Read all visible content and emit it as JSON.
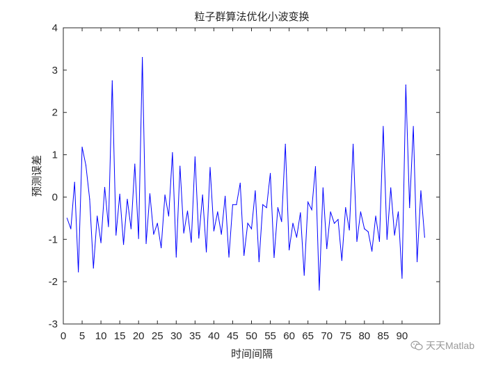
{
  "chart_data": {
    "type": "line",
    "title": "粒子群算法优化小波变换",
    "xlabel": "时间间隔",
    "ylabel": "预测误差",
    "xlim": [
      0,
      100
    ],
    "ylim": [
      -3,
      4
    ],
    "xticks": [
      0,
      5,
      10,
      15,
      20,
      25,
      30,
      35,
      40,
      45,
      50,
      55,
      60,
      65,
      70,
      75,
      80,
      85,
      90
    ],
    "yticks": [
      -3,
      -2,
      -1,
      0,
      1,
      2,
      3,
      4
    ],
    "grid": false,
    "series": [
      {
        "color": "#0000ff",
        "x": [
          1,
          2,
          3,
          4,
          5,
          6,
          7,
          8,
          9,
          10,
          11,
          12,
          13,
          14,
          15,
          16,
          17,
          18,
          19,
          20,
          21,
          22,
          23,
          24,
          25,
          26,
          27,
          28,
          29,
          30,
          31,
          32,
          33,
          34,
          35,
          36,
          37,
          38,
          39,
          40,
          41,
          42,
          43,
          44,
          45,
          46,
          47,
          48,
          49,
          50,
          51,
          52,
          53,
          54,
          55,
          56,
          57,
          58,
          59,
          60,
          61,
          62,
          63,
          64,
          65,
          66,
          67,
          68,
          69,
          70,
          71,
          72,
          73,
          74,
          75,
          76,
          77,
          78,
          79,
          80,
          81,
          82,
          83,
          84,
          85,
          86,
          87,
          88,
          89,
          90,
          91,
          92,
          93,
          94,
          95,
          96
        ],
        "values": [
          -0.5,
          -0.75,
          0.35,
          -1.77,
          1.18,
          0.75,
          -0.05,
          -1.68,
          -0.45,
          -1.08,
          0.23,
          -0.7,
          2.75,
          -0.9,
          0.07,
          -1.12,
          -0.05,
          -0.75,
          0.78,
          -0.98,
          3.3,
          -1.1,
          0.08,
          -0.88,
          -0.62,
          -1.2,
          0.05,
          -0.45,
          1.05,
          -1.42,
          0.73,
          -0.85,
          -0.33,
          -1.07,
          0.95,
          -0.97,
          0.05,
          -1.3,
          0.7,
          -0.8,
          -0.35,
          -0.88,
          0.02,
          -1.42,
          -0.18,
          -0.18,
          0.33,
          -1.38,
          -0.62,
          -0.75,
          0.15,
          -1.53,
          -0.18,
          -0.25,
          0.56,
          -1.43,
          -0.25,
          -0.58,
          1.25,
          -1.25,
          -0.62,
          -0.95,
          -0.37,
          -1.85,
          -0.12,
          -0.3,
          0.72,
          -2.2,
          0.22,
          -1.22,
          -0.35,
          -0.62,
          -0.53,
          -1.5,
          -0.25,
          -0.78,
          1.25,
          -1.05,
          -0.35,
          -0.75,
          -0.82,
          -1.28,
          -0.45,
          -1.05,
          1.67,
          -1.0,
          0.22,
          -0.9,
          -0.35,
          -1.92,
          2.65,
          -0.25,
          1.67,
          -1.53,
          0.15,
          -0.95
        ]
      }
    ]
  },
  "watermark": {
    "text": "天天Matlab",
    "icon": "wechat-icon"
  }
}
